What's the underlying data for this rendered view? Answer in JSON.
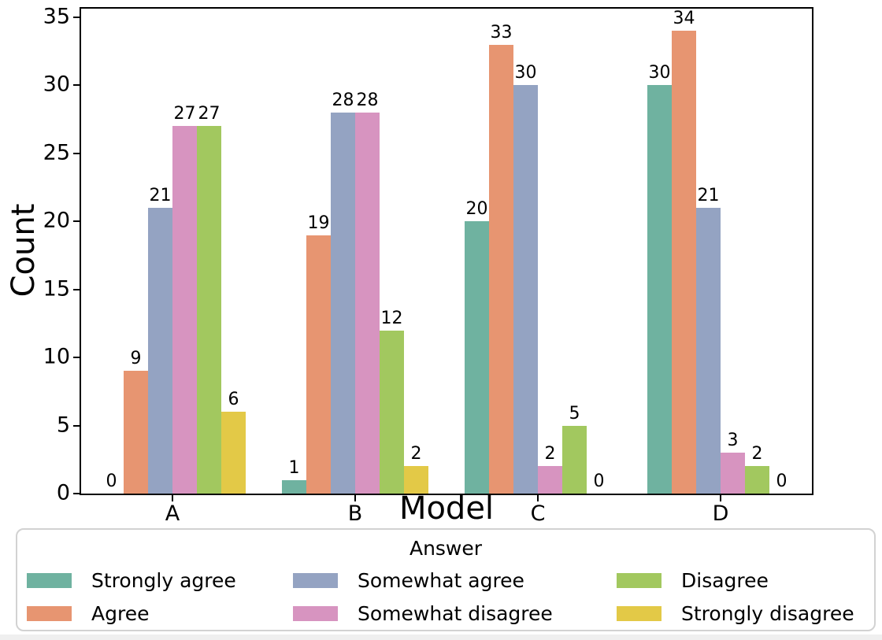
{
  "figure": {
    "background": "#ffffff"
  },
  "chart_data": {
    "type": "bar",
    "title": "",
    "xlabel": "Model",
    "ylabel": "Count",
    "categories": [
      "A",
      "B",
      "C",
      "D"
    ],
    "series": [
      {
        "name": "Strongly agree",
        "color": "#6fb2a0",
        "values": [
          0,
          1,
          20,
          30
        ]
      },
      {
        "name": "Agree",
        "color": "#e79571",
        "values": [
          9,
          19,
          33,
          34
        ]
      },
      {
        "name": "Somewhat agree",
        "color": "#94a3c2",
        "values": [
          21,
          28,
          30,
          21
        ]
      },
      {
        "name": "Somewhat disagree",
        "color": "#d794c0",
        "values": [
          27,
          28,
          2,
          3
        ]
      },
      {
        "name": "Disagree",
        "color": "#a2c85f",
        "values": [
          27,
          12,
          5,
          2
        ]
      },
      {
        "name": "Strongly disagree",
        "color": "#e3c947",
        "values": [
          6,
          2,
          0,
          0
        ]
      }
    ],
    "ylim": [
      0,
      35
    ],
    "yticks": [
      "0",
      "5",
      "10",
      "15",
      "20",
      "25",
      "30",
      "35"
    ],
    "bar_value_labels": true,
    "grid": false,
    "legend": {
      "title": "Answer",
      "position": "bottom",
      "columns": 3
    },
    "axis_color": "#000000"
  }
}
